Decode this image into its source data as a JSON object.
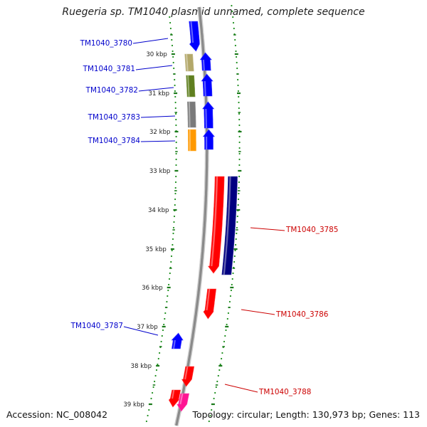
{
  "title": "Ruegeria sp. TM1040 plasmid unnamed, complete sequence",
  "footer": {
    "accession": "Accession: NC_008042",
    "topology": "Topology: circular; Length: 130,973 bp; Genes: 113"
  },
  "ticks": [
    "30 kbp",
    "31 kbp",
    "32 kbp",
    "33 kbp",
    "34 kbp",
    "35 kbp",
    "36 kbp",
    "37 kbp",
    "38 kbp",
    "39 kbp"
  ],
  "genes": [
    {
      "id": "g3780",
      "label": "TM1040_3780",
      "labelColor": "#0000cc"
    },
    {
      "id": "g3781",
      "label": "TM1040_3781",
      "labelColor": "#0000cc"
    },
    {
      "id": "g3782",
      "label": "TM1040_3782",
      "labelColor": "#0000cc"
    },
    {
      "id": "g3783",
      "label": "TM1040_3783",
      "labelColor": "#0000cc"
    },
    {
      "id": "g3784",
      "label": "TM1040_3784",
      "labelColor": "#0000cc"
    },
    {
      "id": "g3785",
      "label": "TM1040_3785",
      "labelColor": "#cc0000"
    },
    {
      "id": "g3786",
      "label": "TM1040_3786",
      "labelColor": "#cc0000"
    },
    {
      "id": "g3787",
      "label": "TM1040_3787",
      "labelColor": "#0000cc"
    },
    {
      "id": "g3788",
      "label": "TM1040_3788",
      "labelColor": "#cc0000"
    }
  ],
  "colors": {
    "backbone": "#8a8a8a",
    "dots": "#1f8f1f",
    "forward": "#0000ff",
    "reverse": "#ff0000",
    "navy": "#000080",
    "khaki": "#b3a86a",
    "olive": "#5f7f1f",
    "gray": "#7a7a7a",
    "orange": "#ff9900",
    "magenta": "#ff1493"
  }
}
